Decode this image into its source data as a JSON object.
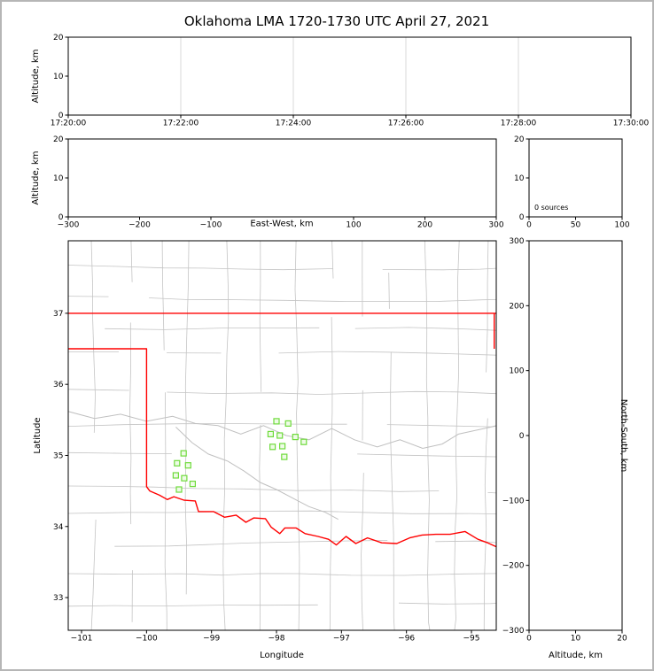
{
  "title": "Oklahoma LMA 1720-1730 UTC April 27, 2021",
  "colors": {
    "frame": "#000000",
    "grid": "#d9d9d9",
    "county_lines": "#c4c4c4",
    "river_lines": "#c0c0c0",
    "state_border": "#ff0000",
    "station_edge": "#6fdb3c",
    "station_fill": "#eefbe6"
  },
  "panels": {
    "time_height": {
      "ylabel": "Altitude, km"
    },
    "ew_height": {
      "ylabel": "Altitude, km",
      "xlabel": "East-West, km"
    },
    "histogram": {
      "annotation": "0 sources"
    },
    "map": {
      "ylabel": "Latitude",
      "xlabel": "Longitude"
    },
    "ns_height": {
      "ylabel": "North-South, km",
      "xlabel": "Altitude, km"
    }
  },
  "chart_data": [
    {
      "id": "time_height_panel",
      "type": "scatter",
      "ylabel": "Altitude, km",
      "xlim": [
        "17:20:00",
        "17:30:00"
      ],
      "ylim": [
        0,
        20
      ],
      "xticks": [
        "17:20:00",
        "17:22:00",
        "17:24:00",
        "17:26:00",
        "17:28:00",
        "17:30:00"
      ],
      "yticks": [
        0,
        10,
        20
      ],
      "grid": "vertical gridlines at interior time ticks",
      "points": []
    },
    {
      "id": "east_west_height_panel",
      "type": "scatter",
      "xlabel": "East-West, km",
      "ylabel": "Altitude, km",
      "xlim": [
        -300,
        300
      ],
      "ylim": [
        0,
        20
      ],
      "xticks": [
        -300,
        -200,
        -100,
        100,
        200,
        300
      ],
      "yticks": [
        0,
        10,
        20
      ],
      "points": []
    },
    {
      "id": "altitude_histogram_panel",
      "type": "line",
      "xlim": [
        0,
        100
      ],
      "ylim": [
        0,
        20
      ],
      "xticks": [
        0,
        50,
        100
      ],
      "yticks": [
        0,
        10,
        20
      ],
      "annotation": "0 sources",
      "source_count": 0,
      "values": []
    },
    {
      "id": "plan_view_map_panel",
      "type": "scatter",
      "xlabel": "Longitude",
      "ylabel": "Latitude",
      "xlim": [
        -101.205,
        -94.618
      ],
      "ylim": [
        32.54,
        38.02
      ],
      "xticks": [
        -101,
        -100,
        -99,
        -98,
        -97,
        -96,
        -95
      ],
      "yticks": [
        33,
        34,
        35,
        36,
        37
      ],
      "lma_stations_lon_lat": [
        [
          -98.0,
          35.48
        ],
        [
          -97.82,
          35.45
        ],
        [
          -98.09,
          35.3
        ],
        [
          -97.95,
          35.28
        ],
        [
          -97.71,
          35.26
        ],
        [
          -98.06,
          35.12
        ],
        [
          -97.91,
          35.13
        ],
        [
          -97.58,
          35.19
        ],
        [
          -97.88,
          34.98
        ],
        [
          -99.43,
          35.03
        ],
        [
          -99.53,
          34.89
        ],
        [
          -99.36,
          34.86
        ],
        [
          -99.55,
          34.72
        ],
        [
          -99.42,
          34.68
        ],
        [
          -99.29,
          34.6
        ],
        [
          -99.5,
          34.52
        ]
      ],
      "state_border_lon_lat": {
        "north_border": [
          [
            -101.21,
            37.0
          ],
          [
            -94.6,
            37.0
          ]
        ],
        "east_border": [
          [
            -94.65,
            37.0
          ],
          [
            -94.65,
            36.5
          ]
        ],
        "west_and_south_border": [
          [
            -101.21,
            36.5
          ],
          [
            -100.0,
            36.5
          ],
          [
            -100.0,
            34.56
          ],
          [
            -99.95,
            34.5
          ],
          [
            -99.8,
            34.44
          ],
          [
            -99.68,
            34.38
          ],
          [
            -99.58,
            34.42
          ],
          [
            -99.42,
            34.37
          ],
          [
            -99.25,
            34.36
          ],
          [
            -99.2,
            34.21
          ],
          [
            -98.97,
            34.21
          ],
          [
            -98.8,
            34.13
          ],
          [
            -98.62,
            34.16
          ],
          [
            -98.47,
            34.06
          ],
          [
            -98.35,
            34.12
          ],
          [
            -98.17,
            34.11
          ],
          [
            -98.08,
            33.99
          ],
          [
            -97.95,
            33.9
          ],
          [
            -97.87,
            33.98
          ],
          [
            -97.7,
            33.98
          ],
          [
            -97.56,
            33.9
          ],
          [
            -97.36,
            33.86
          ],
          [
            -97.2,
            33.82
          ],
          [
            -97.08,
            33.74
          ],
          [
            -96.93,
            33.86
          ],
          [
            -96.78,
            33.76
          ],
          [
            -96.6,
            33.84
          ],
          [
            -96.38,
            33.77
          ],
          [
            -96.15,
            33.76
          ],
          [
            -95.95,
            33.84
          ],
          [
            -95.76,
            33.88
          ],
          [
            -95.55,
            33.89
          ],
          [
            -95.33,
            33.89
          ],
          [
            -95.1,
            33.93
          ],
          [
            -94.9,
            33.82
          ],
          [
            -94.75,
            33.77
          ],
          [
            -94.58,
            33.7
          ]
        ]
      },
      "rivers_lon_lat": [
        [
          [
            -101.21,
            35.62
          ],
          [
            -100.8,
            35.52
          ],
          [
            -100.4,
            35.58
          ],
          [
            -100.0,
            35.48
          ],
          [
            -99.6,
            35.55
          ],
          [
            -99.25,
            35.45
          ],
          [
            -98.9,
            35.42
          ],
          [
            -98.55,
            35.3
          ],
          [
            -98.2,
            35.42
          ],
          [
            -97.85,
            35.28
          ],
          [
            -97.5,
            35.22
          ],
          [
            -97.15,
            35.38
          ],
          [
            -96.8,
            35.22
          ],
          [
            -96.45,
            35.12
          ],
          [
            -96.1,
            35.22
          ],
          [
            -95.75,
            35.1
          ],
          [
            -95.45,
            35.16
          ],
          [
            -95.2,
            35.3
          ],
          [
            -94.95,
            35.35
          ],
          [
            -94.6,
            35.42
          ]
        ],
        [
          [
            -99.55,
            35.4
          ],
          [
            -99.3,
            35.18
          ],
          [
            -99.05,
            35.02
          ],
          [
            -98.75,
            34.92
          ],
          [
            -98.5,
            34.78
          ],
          [
            -98.25,
            34.62
          ],
          [
            -98.0,
            34.52
          ],
          [
            -97.75,
            34.4
          ],
          [
            -97.5,
            34.28
          ],
          [
            -97.25,
            34.2
          ],
          [
            -97.05,
            34.1
          ]
        ]
      ],
      "points": []
    },
    {
      "id": "north_south_height_panel",
      "type": "scatter",
      "xlabel": "Altitude, km",
      "ylabel": "North-South, km",
      "xlim": [
        0,
        20
      ],
      "ylim": [
        -300,
        300
      ],
      "xticks": [
        0,
        10,
        20
      ],
      "yticks": [
        300,
        200,
        100,
        0,
        -100,
        -200,
        -300
      ],
      "points": []
    }
  ]
}
